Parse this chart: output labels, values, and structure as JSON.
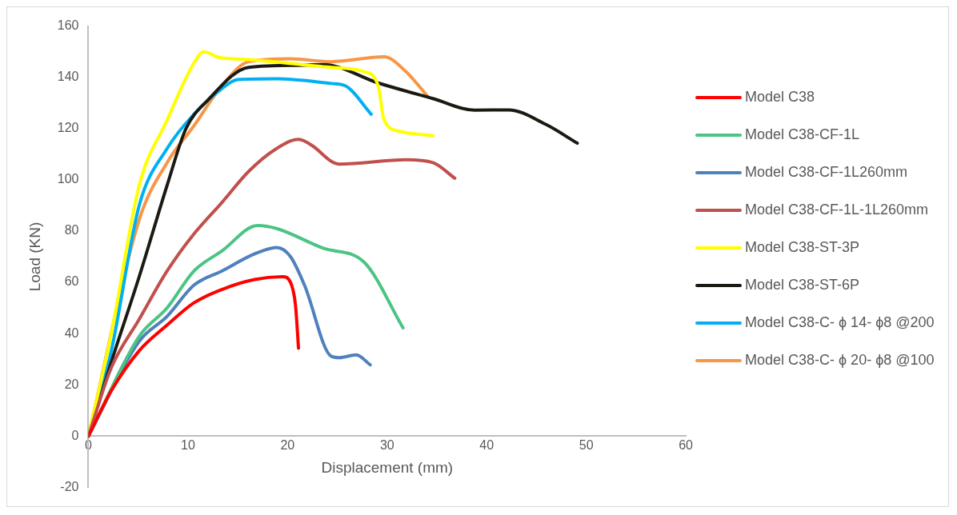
{
  "chart_data": {
    "type": "line",
    "xlabel": "Displacement (mm)",
    "ylabel": "Load (KN)",
    "xlim": [
      0,
      60
    ],
    "xticks": [
      0,
      10,
      20,
      30,
      40,
      50,
      60
    ],
    "ylim": [
      -20,
      160
    ],
    "yticks": [
      -20,
      0,
      20,
      40,
      60,
      80,
      100,
      120,
      140,
      160
    ],
    "grid": false,
    "legend": "right",
    "marker": "none",
    "line_style": "solid",
    "series": [
      {
        "name": "Model C38",
        "color": "#ff0000",
        "x": [
          0,
          2.3,
          5.1,
          7.9,
          10.6,
          13.4,
          16.7,
          19.5,
          20.3,
          20.8,
          21.1
        ],
        "values": [
          0,
          17.7,
          33.3,
          43.3,
          52,
          57.2,
          61.1,
          62.2,
          60,
          51,
          34.3
        ]
      },
      {
        "name": "Model C38-CF-1L",
        "color": "#4cc483",
        "x": [
          0,
          5.1,
          7.9,
          10.6,
          13.4,
          17,
          18.9,
          23.6,
          27.7,
          31.6
        ],
        "values": [
          0,
          38.9,
          50,
          64.4,
          72.2,
          82.2,
          81,
          73.3,
          67.8,
          42.2
        ]
      },
      {
        "name": "Model C38-CF-1L260mm",
        "color": "#4f81bd",
        "x": [
          0,
          5.1,
          7.9,
          10.6,
          13.4,
          16.7,
          18.9,
          20.3,
          21.7,
          24.4,
          25.2,
          26.9,
          28.3
        ],
        "values": [
          0,
          37,
          46.7,
          58.9,
          64.4,
          71.1,
          73.6,
          70,
          58.9,
          31.1,
          30.6,
          31.7,
          27.8
        ]
      },
      {
        "name": "Model C38-CF-1L-1L260mm",
        "color": "#c0504d",
        "x": [
          0,
          2.3,
          5.1,
          7.9,
          10.6,
          13.4,
          16.1,
          18.9,
          21.1,
          22.5,
          24.4,
          25.2,
          31.9,
          34.6,
          36.8
        ],
        "values": [
          0,
          26.7,
          45.6,
          64.4,
          78.9,
          91.1,
          103.3,
          112.2,
          115.8,
          113.3,
          107.2,
          106.1,
          107.8,
          106.7,
          100.6
        ]
      },
      {
        "name": "Model C38-ST-3P",
        "color": "#ffff00",
        "x": [
          0,
          2.3,
          5.1,
          7.9,
          10.6,
          11.6,
          13.1,
          15.9,
          24.4,
          27.7,
          29.1,
          29.7,
          31.3,
          34.6
        ],
        "values": [
          0,
          40,
          97.8,
          123.3,
          145.6,
          150,
          147.8,
          147,
          143.9,
          142.2,
          136.7,
          123.3,
          118.9,
          117.2
        ]
      },
      {
        "name": "Model C38-ST-6P",
        "color": "#1a1a12",
        "x": [
          0,
          2.3,
          5.1,
          7.9,
          9.8,
          12,
          16.1,
          21.1,
          23.6,
          29.1,
          34.6,
          38.8,
          42.2,
          45.9,
          49.1
        ],
        "values": [
          0,
          28.9,
          62.2,
          97.8,
          120,
          131.1,
          143.9,
          144.7,
          145,
          137.8,
          131.7,
          127.2,
          127.3,
          121.7,
          114.3
        ]
      },
      {
        "name": "Model C38-C- ϕ 14- ϕ8 @200",
        "color": "#00b0f0",
        "x": [
          0,
          2.3,
          5.1,
          7.9,
          10.6,
          13.4,
          15,
          18.9,
          24.4,
          25.8,
          28.4
        ],
        "values": [
          0,
          33.3,
          90,
          112.2,
          125.6,
          135.6,
          139.1,
          139.4,
          137.6,
          136.7,
          125.6
        ]
      },
      {
        "name": "Model C38-C- ϕ 20- ϕ8 @100",
        "color": "#f79646",
        "x": [
          0,
          5.1,
          7.9,
          10.6,
          13.4,
          16.1,
          20.3,
          24.4,
          29.7,
          31.9,
          34.1
        ],
        "values": [
          0,
          84.4,
          106.7,
          121.1,
          136.7,
          146.1,
          147.2,
          146.1,
          148,
          142.2,
          132.4
        ]
      }
    ]
  }
}
